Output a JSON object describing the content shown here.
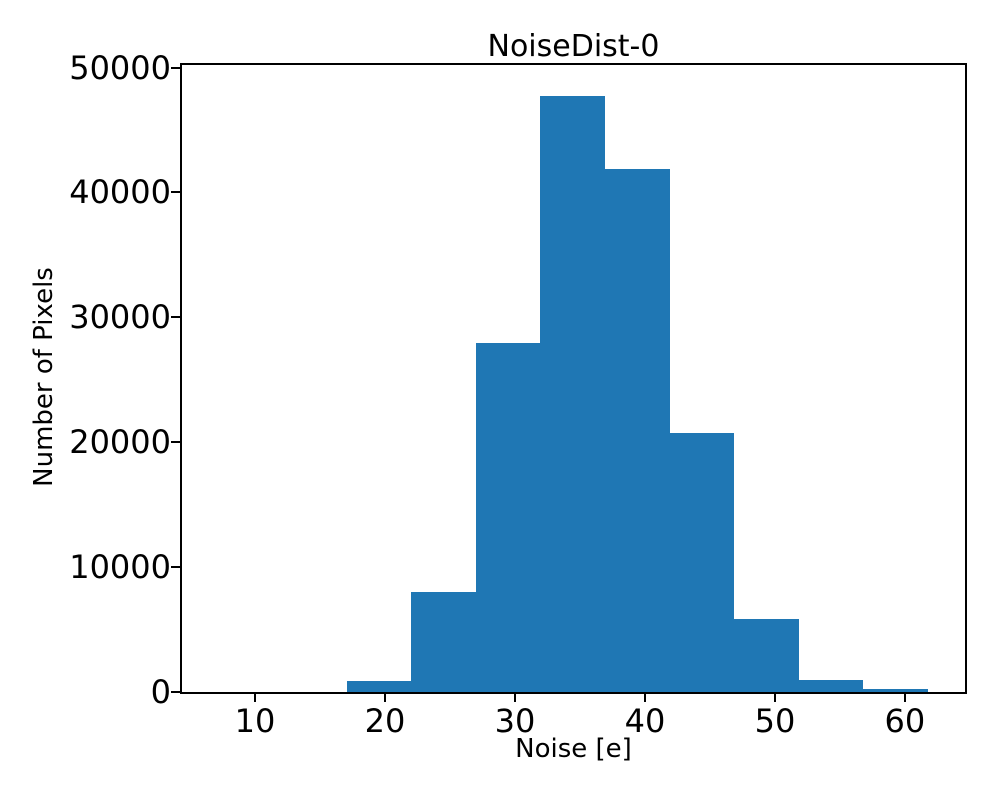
{
  "figure": {
    "background_color": "#ffffff",
    "axis_color": "#000000",
    "text_color": "#000000"
  },
  "chart_data": {
    "type": "bar",
    "subtype": "histogram",
    "title": "NoiseDist-0",
    "xlabel": "Noise [e]",
    "ylabel": "Number of Pixels",
    "bar_color": "#1f77b4",
    "grid": false,
    "legend": null,
    "bin_edges": [
      17.04,
      22.01,
      26.98,
      31.95,
      36.92,
      41.89,
      46.86,
      51.83,
      56.8,
      61.77
    ],
    "counts": [
      880,
      8000,
      27950,
      47700,
      41900,
      20750,
      5850,
      960,
      240
    ],
    "x_ticks": [
      10,
      20,
      30,
      40,
      50,
      60
    ],
    "y_ticks": [
      0,
      10000,
      20000,
      30000,
      40000,
      50000
    ],
    "xlim": [
      4.38,
      64.62
    ],
    "ylim": [
      0,
      50200
    ]
  }
}
